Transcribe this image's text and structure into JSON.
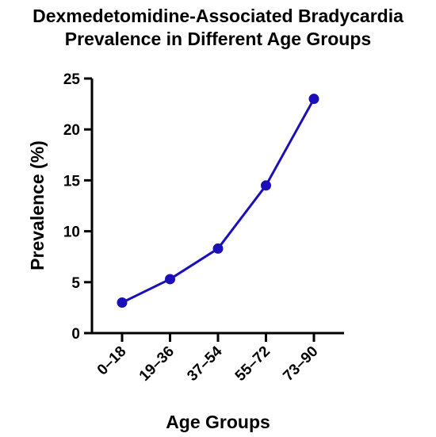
{
  "chart_data": {
    "type": "line",
    "title_lines": [
      "Dexmedetomidine-Associated Bradycardia",
      "Prevalence in Different Age Groups"
    ],
    "xlabel": "Age Groups",
    "ylabel": "Prevalence (%)",
    "categories": [
      "0–18",
      "19–36",
      "37–54",
      "55–72",
      "73–90"
    ],
    "series": [
      {
        "values": [
          3.0,
          5.3,
          8.3,
          14.5,
          23.0
        ],
        "color": "#1a0fb8"
      }
    ],
    "ylim": [
      0,
      25
    ],
    "yticks": [
      0,
      5,
      10,
      15,
      20,
      25
    ],
    "grid": false,
    "legend": "none"
  }
}
